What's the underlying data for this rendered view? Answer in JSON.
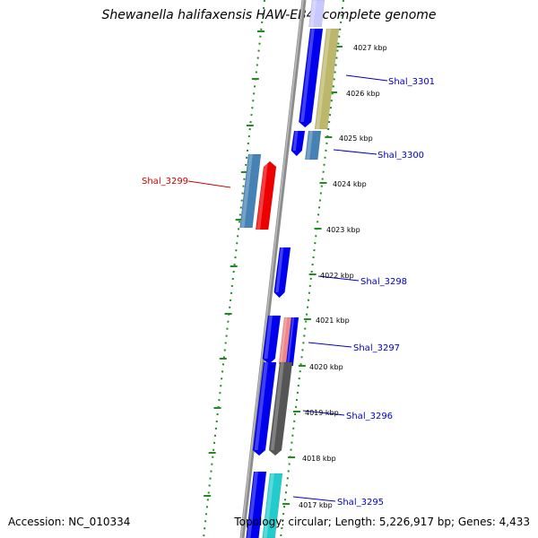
{
  "title": "Shewanella halifaxensis HAW-EB4, complete genome",
  "footer": {
    "accession": "Accession: NC_010334",
    "topology": "Topology: circular; Length: 5,226,917 bp; Genes: 4,433"
  },
  "scale_labels": [
    "4027 kbp",
    "4026 kbp",
    "4025 kbp",
    "4024 kbp",
    "4023 kbp",
    "4022 kbp",
    "4021 kbp",
    "4020 kbp",
    "4019 kbp",
    "4018 kbp",
    "4017 kbp"
  ],
  "gene_labels": [
    {
      "id": "shal-3301",
      "text": "Shal_3301",
      "color": "#0000cc"
    },
    {
      "id": "shal-3300",
      "text": "Shal_3300",
      "color": "#0000cc"
    },
    {
      "id": "shal-3299",
      "text": "Shal_3299",
      "color": "#cc0000"
    },
    {
      "id": "shal-3298",
      "text": "Shal_3298",
      "color": "#0000cc"
    },
    {
      "id": "shal-3297",
      "text": "Shal_3297",
      "color": "#0000cc"
    },
    {
      "id": "shal-3296",
      "text": "Shal_3296",
      "color": "#0000cc"
    },
    {
      "id": "shal-3295",
      "text": "Shal_3295",
      "color": "#0000cc"
    }
  ],
  "colors": {
    "backbone": "#7f7f7f",
    "dots": "#228b22",
    "blue": "#0000ee",
    "steelblue": "#4682b4",
    "red": "#ee0000",
    "khaki": "#bdb76b",
    "pink": "#ee8888",
    "gray": "#555555",
    "cyan": "#22cccc",
    "lavender": "#c8c8ff"
  }
}
